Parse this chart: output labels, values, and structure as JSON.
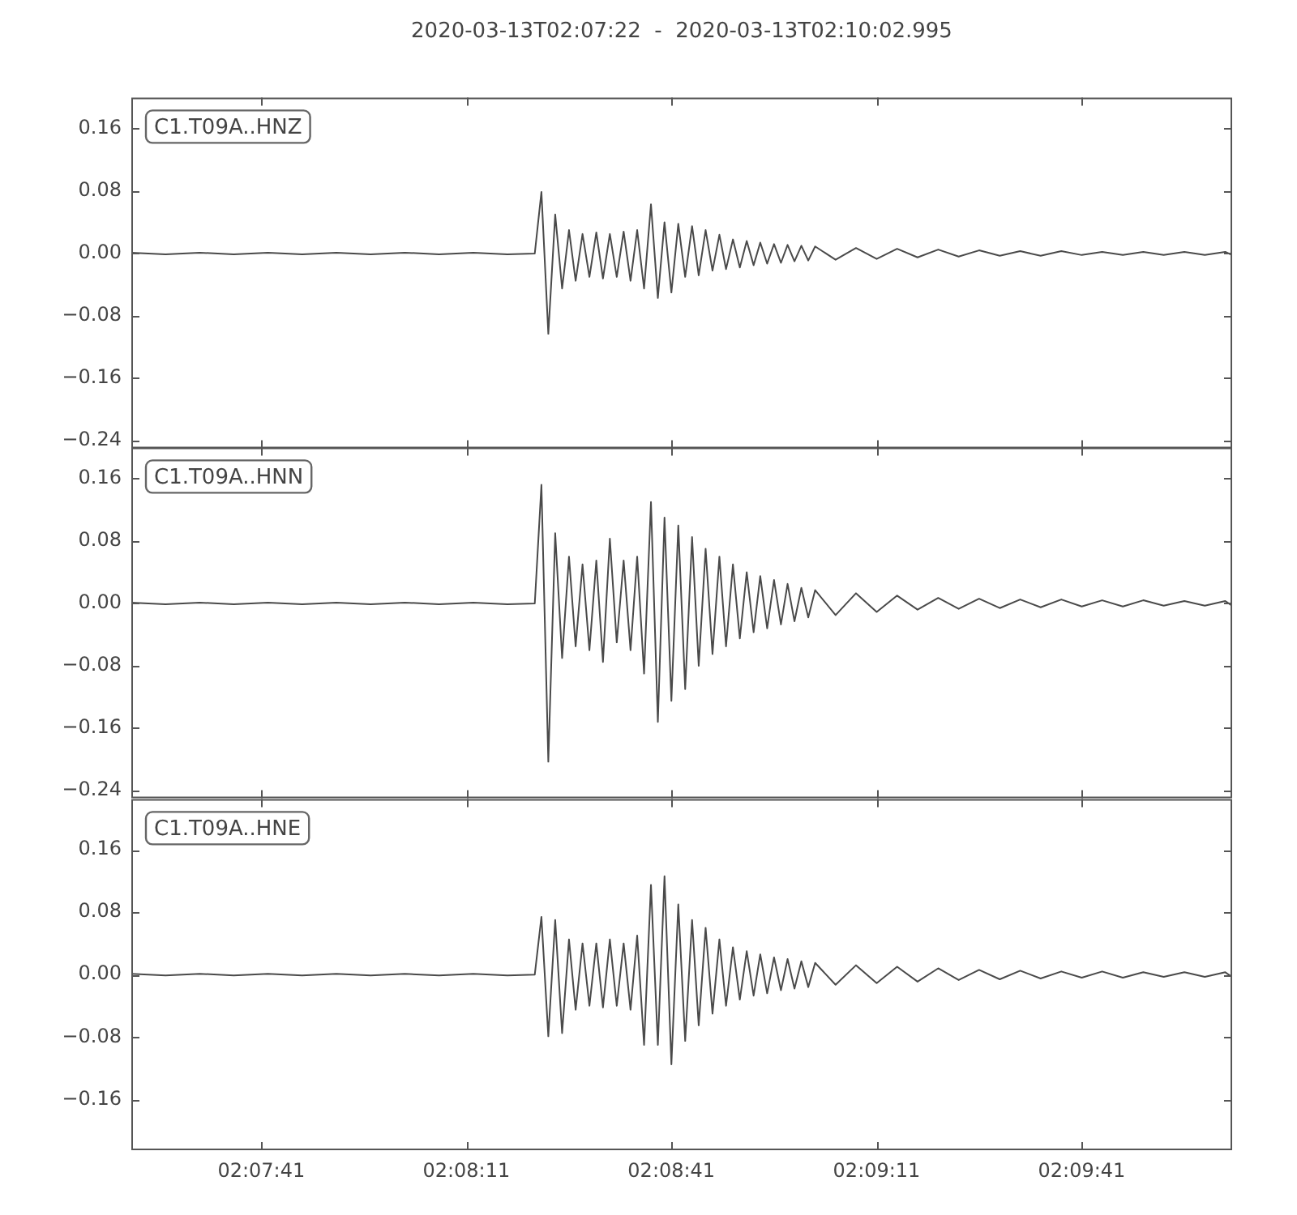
{
  "chart_data": [
    {
      "type": "line",
      "title": "2020-03-13T02:07:22  -  2020-03-13T02:10:02.995",
      "annotations": [
        "C1.T09A..HNZ"
      ],
      "tick_labels": "y",
      "x": [
        2.12278,
        2.12417,
        2.12556,
        2.12694,
        2.12833,
        2.12972,
        2.13111,
        2.1325,
        2.13389,
        2.13528,
        2.13667,
        2.13806,
        2.13917,
        2.13944,
        2.13972,
        2.14,
        2.14028,
        2.14056,
        2.14083,
        2.14111,
        2.14139,
        2.14167,
        2.14194,
        2.14222,
        2.1425,
        2.14278,
        2.14306,
        2.14333,
        2.14361,
        2.14389,
        2.14417,
        2.14444,
        2.14472,
        2.145,
        2.14528,
        2.14556,
        2.14583,
        2.14611,
        2.14639,
        2.14667,
        2.14694,
        2.14722,
        2.1475,
        2.14778,
        2.14806,
        2.14833,
        2.14861,
        2.14889,
        2.14917,
        2.14944,
        2.14972,
        2.15,
        2.15028,
        2.15056,
        2.15139,
        2.15222,
        2.15306,
        2.15389,
        2.15472,
        2.15556,
        2.15639,
        2.15722,
        2.15806,
        2.15889,
        2.15972,
        2.16056,
        2.16139,
        2.16222,
        2.16306,
        2.16389,
        2.16472,
        2.16556,
        2.16639,
        2.16722,
        2.1675
      ],
      "series": [
        {
          "color": "#4a4a4a",
          "values": [
            0.001,
            -0.001,
            0.001,
            -0.001,
            0.001,
            -0.001,
            0.001,
            -0.001,
            0.001,
            -0.001,
            0.001,
            -0.001,
            0,
            0.079,
            -0.103,
            0.05,
            -0.045,
            0.03,
            -0.035,
            0.025,
            -0.03,
            0.027,
            -0.032,
            0.025,
            -0.03,
            0.028,
            -0.035,
            0.03,
            -0.045,
            0.063,
            -0.057,
            0.04,
            -0.05,
            0.038,
            -0.03,
            0.035,
            -0.028,
            0.03,
            -0.022,
            0.024,
            -0.02,
            0.018,
            -0.018,
            0.016,
            -0.015,
            0.014,
            -0.013,
            0.012,
            -0.012,
            0.011,
            -0.01,
            0.01,
            -0.009,
            0.009,
            -0.008,
            0.007,
            -0.007,
            0.006,
            -0.005,
            0.005,
            -0.004,
            0.004,
            -0.003,
            0.003,
            -0.003,
            0.003,
            -0.002,
            0.002,
            -0.002,
            0.002,
            -0.002,
            0.002,
            -0.002,
            0.002,
            -0.002
          ]
        }
      ],
      "xlim": [
        2.12278,
        2.1675
      ],
      "xticks": [
        {
          "value": 2.12806,
          "label": null
        },
        {
          "value": 2.13639,
          "label": null
        },
        {
          "value": 2.14472,
          "label": null
        },
        {
          "value": 2.15306,
          "label": null
        },
        {
          "value": 2.16139,
          "label": null
        }
      ],
      "ylim": [
        -0.25,
        0.2
      ],
      "yticks": [
        {
          "value": -0.24,
          "label": "−0.24"
        },
        {
          "value": -0.16,
          "label": "−0.16"
        },
        {
          "value": -0.08,
          "label": "−0.08"
        },
        {
          "value": 0,
          "label": "0.00"
        },
        {
          "value": 0.08,
          "label": "0.08"
        },
        {
          "value": 0.16,
          "label": "0.16"
        }
      ]
    },
    {
      "type": "line",
      "annotations": [
        "C1.T09A..HNN"
      ],
      "tick_labels": "y",
      "x": [
        2.12278,
        2.12417,
        2.12556,
        2.12694,
        2.12833,
        2.12972,
        2.13111,
        2.1325,
        2.13389,
        2.13528,
        2.13667,
        2.13806,
        2.13917,
        2.13944,
        2.13972,
        2.14,
        2.14028,
        2.14056,
        2.14083,
        2.14111,
        2.14139,
        2.14167,
        2.14194,
        2.14222,
        2.1425,
        2.14278,
        2.14306,
        2.14333,
        2.14361,
        2.14389,
        2.14417,
        2.14444,
        2.14472,
        2.145,
        2.14528,
        2.14556,
        2.14583,
        2.14611,
        2.14639,
        2.14667,
        2.14694,
        2.14722,
        2.1475,
        2.14778,
        2.14806,
        2.14833,
        2.14861,
        2.14889,
        2.14917,
        2.14944,
        2.14972,
        2.15,
        2.15028,
        2.15056,
        2.15139,
        2.15222,
        2.15306,
        2.15389,
        2.15472,
        2.15556,
        2.15639,
        2.15722,
        2.15806,
        2.15889,
        2.15972,
        2.16056,
        2.16139,
        2.16222,
        2.16306,
        2.16389,
        2.16472,
        2.16556,
        2.16639,
        2.16722,
        2.1675
      ],
      "series": [
        {
          "color": "#4a4a4a",
          "values": [
            0.001,
            -0.001,
            0.001,
            -0.001,
            0.001,
            -0.001,
            0.001,
            -0.001,
            0.001,
            -0.001,
            0.001,
            -0.001,
            0,
            0.152,
            -0.203,
            0.09,
            -0.07,
            0.06,
            -0.055,
            0.05,
            -0.06,
            0.055,
            -0.075,
            0.083,
            -0.05,
            0.055,
            -0.06,
            0.06,
            -0.09,
            0.13,
            -0.152,
            0.11,
            -0.125,
            0.1,
            -0.11,
            0.085,
            -0.08,
            0.07,
            -0.065,
            0.06,
            -0.055,
            0.05,
            -0.045,
            0.04,
            -0.037,
            0.035,
            -0.032,
            0.03,
            -0.027,
            0.025,
            -0.023,
            0.02,
            -0.018,
            0.017,
            -0.015,
            0.013,
            -0.011,
            0.01,
            -0.008,
            0.007,
            -0.007,
            0.006,
            -0.006,
            0.005,
            -0.005,
            0.005,
            -0.004,
            0.004,
            -0.004,
            0.004,
            -0.003,
            0.003,
            -0.003,
            0.003,
            -0.003
          ]
        }
      ],
      "xlim": [
        2.12278,
        2.1675
      ],
      "xticks": [
        {
          "value": 2.12806,
          "label": null
        },
        {
          "value": 2.13639,
          "label": null
        },
        {
          "value": 2.14472,
          "label": null
        },
        {
          "value": 2.15306,
          "label": null
        },
        {
          "value": 2.16139,
          "label": null
        }
      ],
      "ylim": [
        -0.25,
        0.2
      ],
      "yticks": [
        {
          "value": -0.24,
          "label": "−0.24"
        },
        {
          "value": -0.16,
          "label": "−0.16"
        },
        {
          "value": -0.08,
          "label": "−0.08"
        },
        {
          "value": 0,
          "label": "0.00"
        },
        {
          "value": 0.08,
          "label": "0.08"
        },
        {
          "value": 0.16,
          "label": "0.16"
        }
      ]
    },
    {
      "type": "line",
      "annotations": [
        "C1.T09A..HNE"
      ],
      "x": [
        2.12278,
        2.12417,
        2.12556,
        2.12694,
        2.12833,
        2.12972,
        2.13111,
        2.1325,
        2.13389,
        2.13528,
        2.13667,
        2.13806,
        2.13917,
        2.13944,
        2.13972,
        2.14,
        2.14028,
        2.14056,
        2.14083,
        2.14111,
        2.14139,
        2.14167,
        2.14194,
        2.14222,
        2.1425,
        2.14278,
        2.14306,
        2.14333,
        2.14361,
        2.14389,
        2.14417,
        2.14444,
        2.14472,
        2.145,
        2.14528,
        2.14556,
        2.14583,
        2.14611,
        2.14639,
        2.14667,
        2.14694,
        2.14722,
        2.1475,
        2.14778,
        2.14806,
        2.14833,
        2.14861,
        2.14889,
        2.14917,
        2.14944,
        2.14972,
        2.15,
        2.15028,
        2.15056,
        2.15139,
        2.15222,
        2.15306,
        2.15389,
        2.15472,
        2.15556,
        2.15639,
        2.15722,
        2.15806,
        2.15889,
        2.15972,
        2.16056,
        2.16139,
        2.16222,
        2.16306,
        2.16389,
        2.16472,
        2.16556,
        2.16639,
        2.16722,
        2.1675
      ],
      "series": [
        {
          "color": "#4a4a4a",
          "values": [
            0.001,
            -0.001,
            0.001,
            -0.001,
            0.001,
            -0.001,
            0.001,
            -0.001,
            0.001,
            -0.001,
            0.001,
            -0.001,
            0,
            0.074,
            -0.079,
            0.07,
            -0.075,
            0.045,
            -0.045,
            0.04,
            -0.04,
            0.04,
            -0.042,
            0.045,
            -0.04,
            0.04,
            -0.045,
            0.05,
            -0.09,
            0.115,
            -0.09,
            0.126,
            -0.115,
            0.09,
            -0.085,
            0.07,
            -0.065,
            0.06,
            -0.05,
            0.045,
            -0.04,
            0.035,
            -0.032,
            0.03,
            -0.027,
            0.026,
            -0.024,
            0.022,
            -0.02,
            0.02,
            -0.018,
            0.017,
            -0.016,
            0.015,
            -0.013,
            0.012,
            -0.011,
            0.01,
            -0.009,
            0.008,
            -0.007,
            0.006,
            -0.006,
            0.005,
            -0.005,
            0.004,
            -0.004,
            0.004,
            -0.004,
            0.003,
            -0.003,
            0.003,
            -0.003,
            0.003,
            -0.003
          ]
        }
      ],
      "xlim": [
        2.12278,
        2.1675
      ],
      "xticks": [
        {
          "value": 2.12806,
          "label": "02:07:41"
        },
        {
          "value": 2.13639,
          "label": "02:08:11"
        },
        {
          "value": 2.14472,
          "label": "02:08:41"
        },
        {
          "value": 2.15306,
          "label": "02:09:11"
        },
        {
          "value": 2.16139,
          "label": "02:09:41"
        }
      ],
      "ylim": [
        -0.225,
        0.225
      ],
      "yticks": [
        {
          "value": -0.16,
          "label": "−0.16"
        },
        {
          "value": -0.08,
          "label": "−0.08"
        },
        {
          "value": 0,
          "label": "0.00"
        },
        {
          "value": 0.08,
          "label": "0.08"
        },
        {
          "value": 0.16,
          "label": "0.16"
        }
      ]
    }
  ]
}
